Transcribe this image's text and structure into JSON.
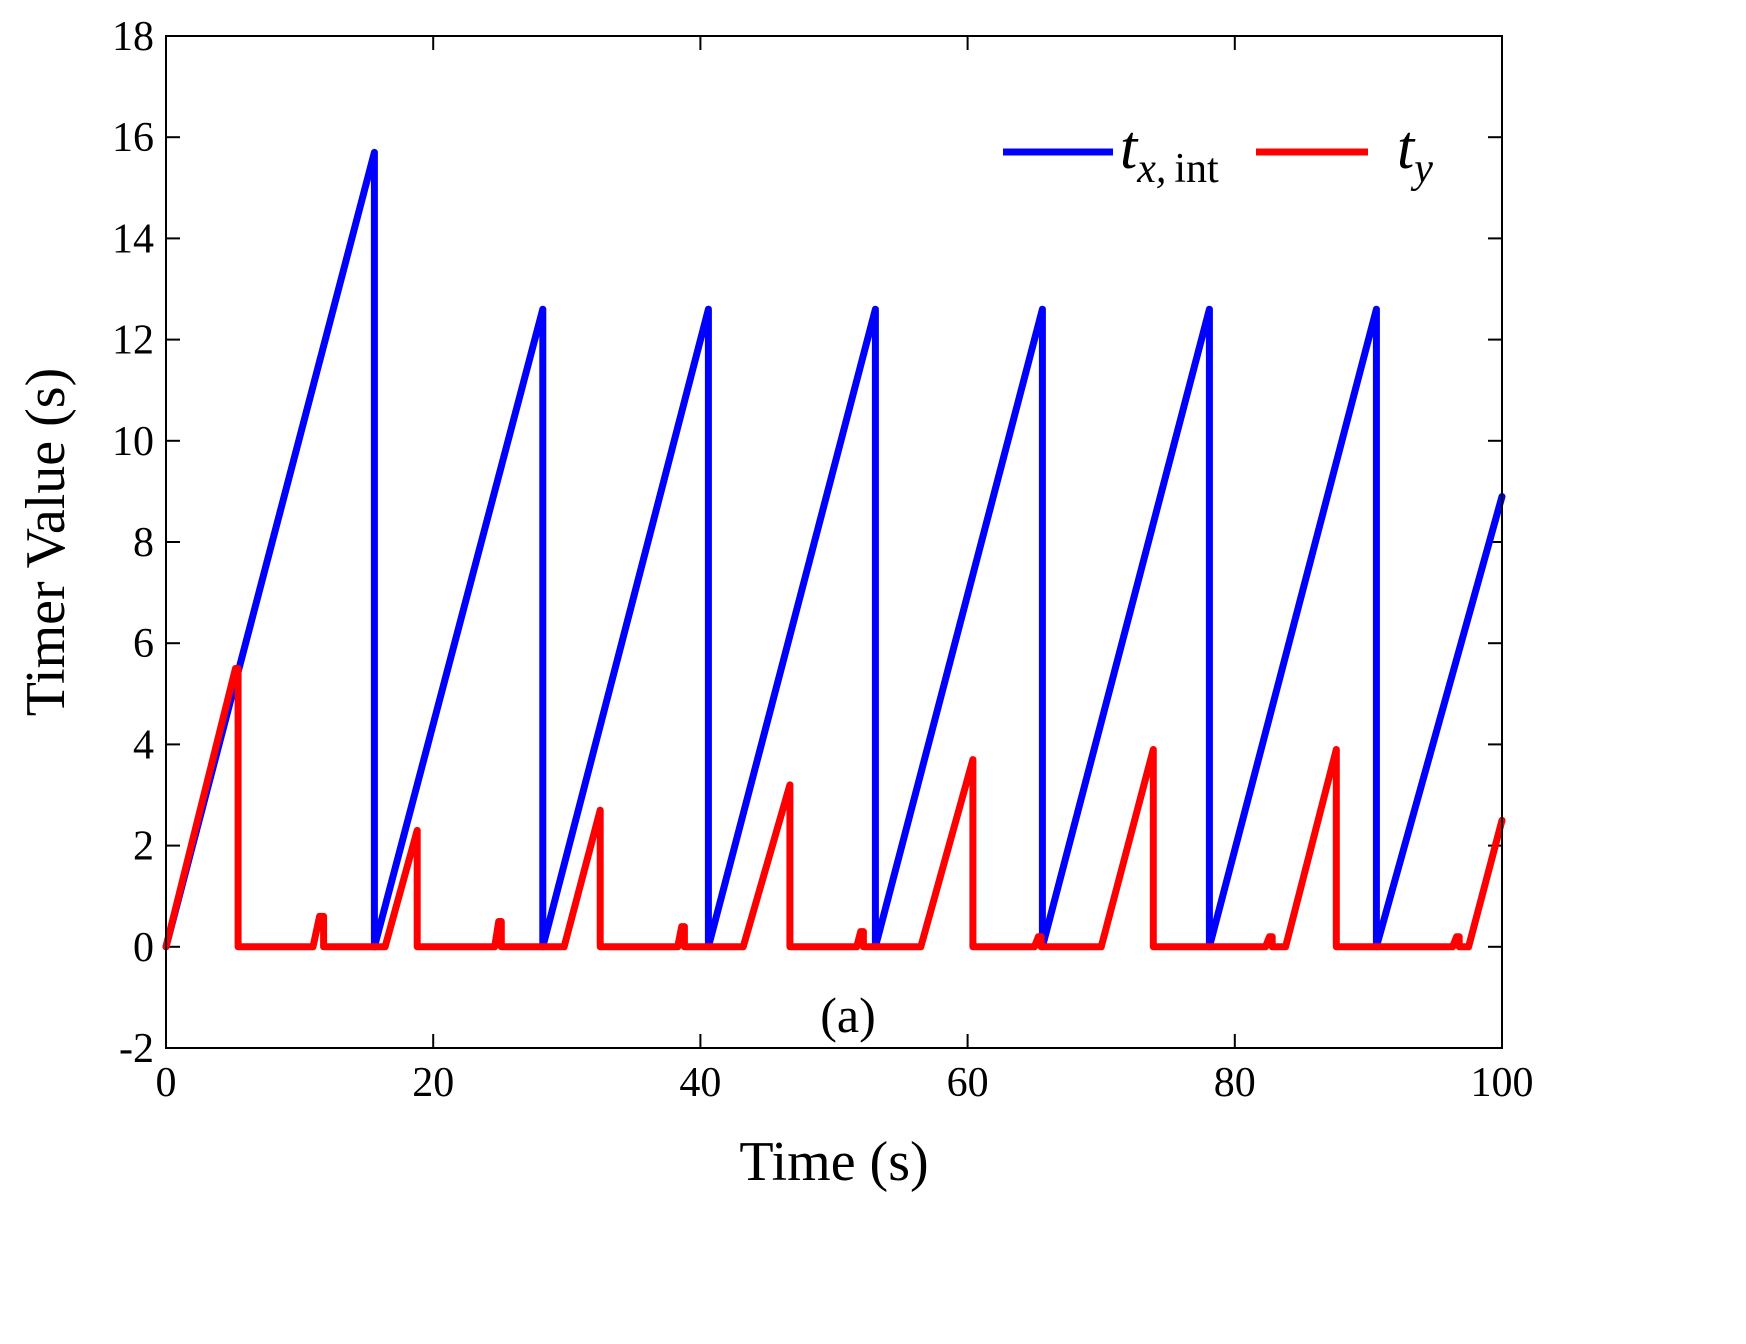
{
  "chart_data": {
    "type": "line",
    "title": "",
    "xlabel": "Time (s)",
    "ylabel": "Timer Value (s)",
    "panel_label": "(a)",
    "xlim": [
      0,
      100
    ],
    "ylim": [
      -2,
      18
    ],
    "xticks": [
      0,
      20,
      40,
      60,
      80,
      100
    ],
    "yticks": [
      -2,
      0,
      2,
      4,
      6,
      8,
      10,
      12,
      14,
      16,
      18
    ],
    "xtick_labels": [
      "0",
      "20",
      "40",
      "60",
      "80",
      "100"
    ],
    "ytick_labels": [
      "-2",
      "0",
      "2",
      "4",
      "6",
      "8",
      "10",
      "12",
      "14",
      "16",
      "18"
    ],
    "grid": false,
    "legend_position": "top-right",
    "series": [
      {
        "name": "t_x,int",
        "legend_main": "t",
        "legend_sub": "x,",
        "legend_sub2": "int",
        "color": "#0000ff",
        "x": [
          0,
          15.6,
          15.6,
          28.2,
          28.2,
          40.6,
          40.6,
          53.1,
          53.1,
          65.6,
          65.6,
          78.1,
          78.1,
          90.6,
          90.6,
          100
        ],
        "y": [
          0,
          15.7,
          0,
          12.6,
          0,
          12.6,
          0,
          12.6,
          0,
          12.6,
          0,
          12.6,
          0,
          12.6,
          0,
          8.9
        ]
      },
      {
        "name": "t_y",
        "legend_main": "t",
        "legend_sub": "y",
        "color": "#ff0000",
        "x": [
          0,
          5.2,
          5.4,
          5.4,
          11.0,
          11.5,
          11.8,
          11.8,
          16.4,
          18.8,
          18.8,
          24.6,
          24.9,
          25.1,
          25.1,
          29.8,
          32.5,
          32.5,
          38.3,
          38.6,
          38.8,
          38.8,
          43.2,
          46.7,
          46.7,
          51.7,
          52.0,
          52.2,
          52.2,
          56.5,
          60.4,
          60.4,
          65.0,
          65.3,
          65.5,
          65.5,
          70.0,
          73.9,
          73.9,
          82.3,
          82.6,
          82.8,
          82.8,
          83.8,
          87.6,
          87.6,
          96.3,
          96.6,
          96.8,
          96.8,
          97.5,
          100
        ],
        "y": [
          0,
          5.5,
          5.5,
          0,
          0,
          0.6,
          0.6,
          0,
          0,
          2.3,
          0,
          0,
          0.5,
          0.5,
          0,
          0,
          2.7,
          0,
          0,
          0.4,
          0.4,
          0,
          0,
          3.2,
          0,
          0,
          0.3,
          0.3,
          0,
          0,
          3.7,
          0,
          0,
          0.2,
          0.2,
          0,
          0,
          3.9,
          0,
          0,
          0.2,
          0.2,
          0,
          0,
          3.9,
          0,
          0,
          0.2,
          0.2,
          0,
          0,
          2.5
        ]
      }
    ]
  }
}
